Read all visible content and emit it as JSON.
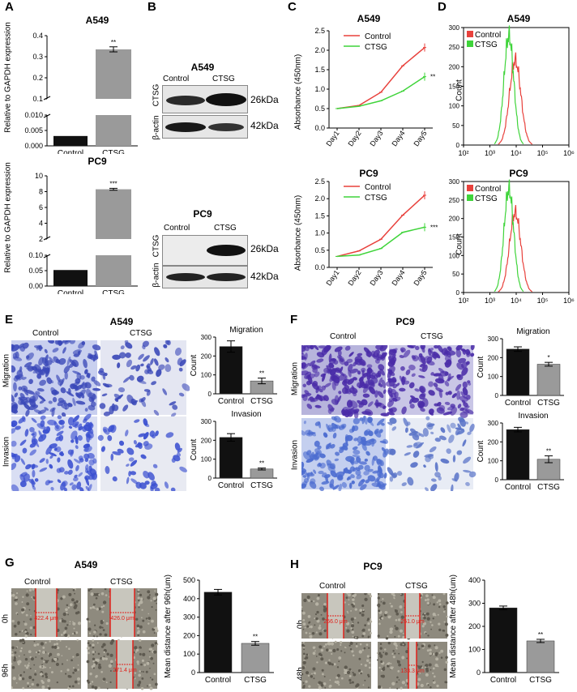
{
  "panels": {
    "A": {
      "letter": "A",
      "charts": [
        {
          "type": "bar",
          "title": "A549",
          "ylabel": "Relative to GAPDH expression",
          "categories": [
            "Control",
            "CTSG"
          ],
          "values": [
            0.0032,
            0.335
          ],
          "errors": [
            0.0002,
            0.012
          ],
          "axis_break": true,
          "lower_ticks": [
            "0.000",
            "0.005",
            "0.010"
          ],
          "upper_ticks": [
            "0.1",
            "0.2",
            "0.3",
            "0.4"
          ],
          "significance": "**"
        },
        {
          "type": "bar",
          "title": "PC9",
          "ylabel": "Relative to GAPDH expression",
          "categories": [
            "Control",
            "CTSG"
          ],
          "values": [
            0.052,
            8.3
          ],
          "errors": [
            0.002,
            0.12
          ],
          "axis_break": true,
          "lower_ticks": [
            "0.00",
            "0.05",
            "0.10"
          ],
          "upper_ticks": [
            "2",
            "4",
            "6",
            "8",
            "10"
          ],
          "significance": "***"
        }
      ]
    },
    "B": {
      "letter": "B",
      "blots": [
        {
          "title": "A549",
          "col_labels": [
            "Control",
            "CTSG"
          ],
          "rows": [
            {
              "label": "CTSG",
              "size": "26kDa"
            },
            {
              "label": "β-actin",
              "size": "42kDa"
            }
          ]
        },
        {
          "title": "PC9",
          "col_labels": [
            "Control",
            "CTSG"
          ],
          "rows": [
            {
              "label": "CTSG",
              "size": "26kDa"
            },
            {
              "label": "β-actin",
              "size": "42kDa"
            }
          ]
        }
      ]
    },
    "C": {
      "letter": "C",
      "charts": [
        {
          "type": "line",
          "title": "A549",
          "ylabel": "Absorbance (450nm)",
          "x": [
            "Day1",
            "Day2",
            "Day3",
            "Day4",
            "Day5"
          ],
          "yticks": [
            "0.0",
            "0.5",
            "1.0",
            "1.5",
            "2.0",
            "2.5"
          ],
          "ylim": [
            0,
            2.5
          ],
          "series": [
            {
              "name": "Control",
              "values": [
                0.5,
                0.58,
                0.92,
                1.6,
                2.07
              ],
              "color": "#e8413c"
            },
            {
              "name": "CTSG",
              "values": [
                0.5,
                0.56,
                0.7,
                0.95,
                1.32
              ],
              "color": "#3fd43a"
            }
          ],
          "significance": "**"
        },
        {
          "type": "line",
          "title": "PC9",
          "ylabel": "Absorbance (450nm)",
          "x": [
            "Day1",
            "Day2",
            "Day3",
            "Day4",
            "Day5"
          ],
          "yticks": [
            "0.0",
            "0.5",
            "1.0",
            "1.5",
            "2.0",
            "2.5"
          ],
          "ylim": [
            0,
            2.5
          ],
          "series": [
            {
              "name": "Control",
              "values": [
                0.32,
                0.48,
                0.82,
                1.52,
                2.1
              ],
              "color": "#e8413c"
            },
            {
              "name": "CTSG",
              "values": [
                0.32,
                0.36,
                0.55,
                1.02,
                1.17
              ],
              "color": "#3fd43a"
            }
          ],
          "significance": "***"
        }
      ]
    },
    "D": {
      "letter": "D",
      "charts": [
        {
          "type": "histogram",
          "title": "A549",
          "ylabel": "Count",
          "yticks": [
            "0",
            "50",
            "100",
            "150",
            "200",
            "250",
            "300"
          ],
          "xticks": [
            "10²",
            "10³",
            "10⁴",
            "10⁵",
            "10⁶"
          ],
          "legend": [
            "Control",
            "CTSG"
          ]
        },
        {
          "type": "histogram",
          "title": "PC9",
          "ylabel": "Count",
          "yticks": [
            "0",
            "50",
            "100",
            "150",
            "200",
            "250",
            "300"
          ],
          "xticks": [
            "10²",
            "10³",
            "10⁴",
            "10⁵",
            "10⁶"
          ],
          "legend": [
            "Control",
            "CTSG"
          ]
        }
      ]
    },
    "E": {
      "letter": "E",
      "title": "A549",
      "col_labels": [
        "Control",
        "CTSG"
      ],
      "row_labels": [
        "Migration",
        "Invasion"
      ],
      "charts": [
        {
          "type": "bar",
          "title": "Migration",
          "ylabel": "Count",
          "categories": [
            "Control",
            "CTSG"
          ],
          "values": [
            250,
            68
          ],
          "errors": [
            30,
            15
          ],
          "yticks": [
            "0",
            "100",
            "200",
            "300"
          ],
          "ylim": [
            0,
            300
          ],
          "significance": "**"
        },
        {
          "type": "bar",
          "title": "Invasion",
          "ylabel": "Count",
          "categories": [
            "Control",
            "CTSG"
          ],
          "values": [
            215,
            48
          ],
          "errors": [
            20,
            5
          ],
          "yticks": [
            "0",
            "100",
            "200",
            "300"
          ],
          "ylim": [
            0,
            300
          ],
          "significance": "**"
        }
      ]
    },
    "F": {
      "letter": "F",
      "title": "PC9",
      "col_labels": [
        "Control",
        "CTSG"
      ],
      "row_labels": [
        "Migration",
        "Invasion"
      ],
      "charts": [
        {
          "type": "bar",
          "title": "Migration",
          "ylabel": "Count",
          "categories": [
            "Control",
            "CTSG"
          ],
          "values": [
            245,
            165
          ],
          "errors": [
            12,
            10
          ],
          "yticks": [
            "0",
            "100",
            "200",
            "300"
          ],
          "ylim": [
            0,
            300
          ],
          "significance": "*"
        },
        {
          "type": "bar",
          "title": "Invasion",
          "ylabel": "Count",
          "categories": [
            "Control",
            "CTSG"
          ],
          "values": [
            265,
            108
          ],
          "errors": [
            12,
            18
          ],
          "yticks": [
            "0",
            "100",
            "200",
            "300"
          ],
          "ylim": [
            0,
            300
          ],
          "significance": "**"
        }
      ]
    },
    "G": {
      "letter": "G",
      "title": "A549",
      "col_labels": [
        "Control",
        "CTSG"
      ],
      "row_labels": [
        "0h",
        "96h"
      ],
      "measurements": [
        "422.4 μm",
        "426.0 μm",
        "271.4 μm"
      ],
      "chart": {
        "type": "bar",
        "ylabel": "Mean distance after 96h(um)",
        "categories": [
          "Control",
          "CTSG"
        ],
        "values": [
          435,
          158
        ],
        "errors": [
          15,
          10
        ],
        "yticks": [
          "0",
          "100",
          "200",
          "300",
          "400",
          "500"
        ],
        "ylim": [
          0,
          500
        ],
        "significance": "**"
      }
    },
    "H": {
      "letter": "H",
      "title": "PC9",
      "col_labels": [
        "Control",
        "CTSG"
      ],
      "row_labels": [
        "0h",
        "48h"
      ],
      "measurements": [
        "256.0 μm",
        "251.0 μm",
        "133.3 μm"
      ],
      "chart": {
        "type": "bar",
        "ylabel": "Mean distance after 48h(um)",
        "categories": [
          "Control",
          "CTSG"
        ],
        "values": [
          280,
          137
        ],
        "errors": [
          8,
          7
        ],
        "yticks": [
          "0",
          "100",
          "200",
          "300",
          "400"
        ],
        "ylim": [
          0,
          400
        ],
        "significance": "**"
      }
    }
  },
  "colors": {
    "black_bar": "#111111",
    "grey_bar": "#9a9a9a",
    "red": "#e8413c",
    "green": "#3fd43a",
    "stain": "#3a48b8",
    "scratch": "#e0201a"
  }
}
